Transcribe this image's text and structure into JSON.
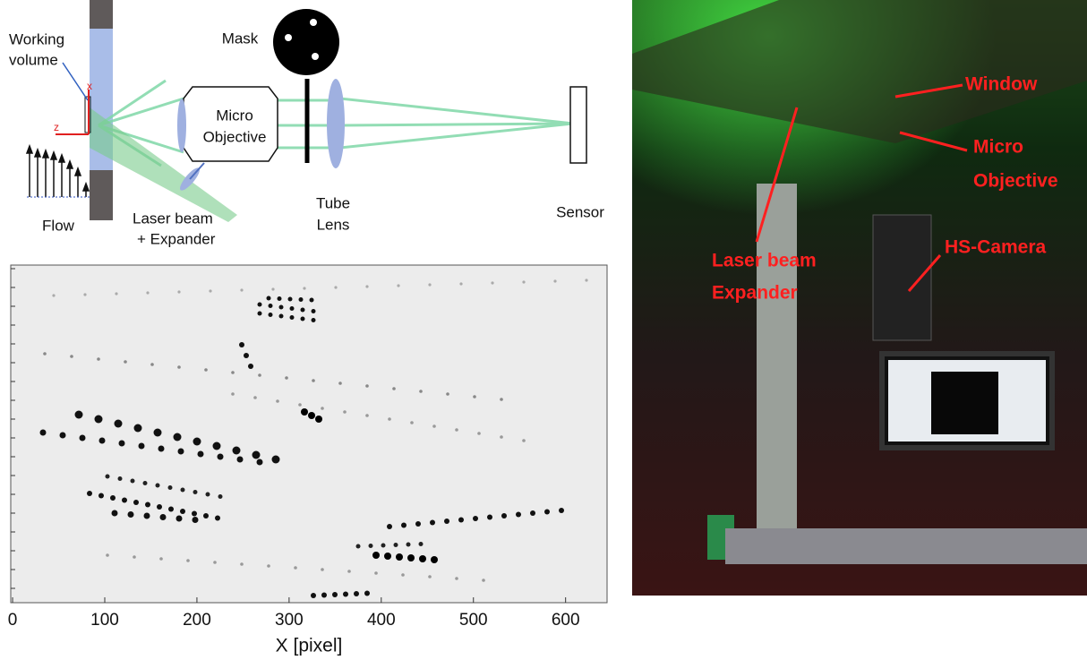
{
  "diagram": {
    "working_volume": [
      "Working",
      "volume"
    ],
    "mask": "Mask",
    "micro_objective": [
      "Micro",
      "Objective"
    ],
    "tube_lens": [
      "Tube",
      "Lens"
    ],
    "sensor": "Sensor",
    "flow": "Flow",
    "laser": [
      "Laser beam",
      "+ Expander"
    ],
    "axis_x": "x",
    "axis_z": "z"
  },
  "chart_data": {
    "type": "image",
    "xlabel": "X [pixel]",
    "xlim": [
      -2,
      645
    ],
    "xticks": [
      0,
      100,
      200,
      300,
      400,
      500,
      600
    ]
  },
  "photo": {
    "window": "Window",
    "micro_objective": [
      "Micro",
      "Objective"
    ],
    "laser": [
      "Laser beam",
      "Expander"
    ],
    "camera": "HS-Camera"
  }
}
